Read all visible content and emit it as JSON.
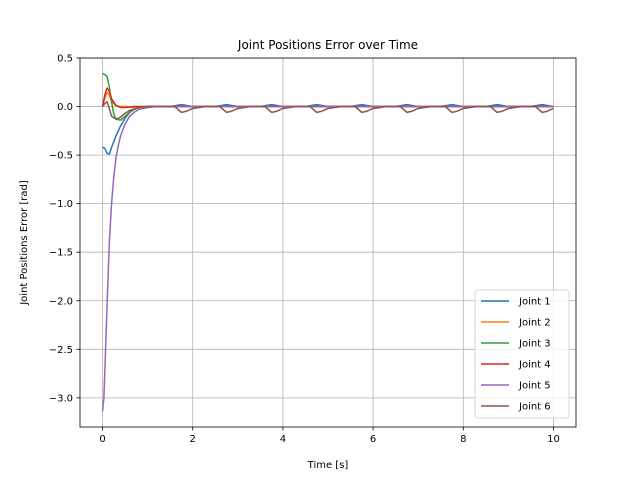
{
  "chart_data": {
    "type": "line",
    "title": "Joint Positions Error over Time",
    "xlabel": "Time [s]",
    "ylabel": "Joint Positions Error [rad]",
    "xlim": [
      -0.5,
      10.5
    ],
    "ylim": [
      -3.3,
      0.5
    ],
    "xticks": [
      0,
      2,
      4,
      6,
      8,
      10
    ],
    "xtick_labels": [
      "0",
      "2",
      "4",
      "6",
      "8",
      "10"
    ],
    "yticks": [
      0.5,
      0.0,
      -0.5,
      -1.0,
      -1.5,
      -2.0,
      -2.5,
      -3.0
    ],
    "ytick_labels": [
      "0.5",
      "0.0",
      "−0.5",
      "−1.0",
      "−1.5",
      "−2.0",
      "−2.5",
      "−3.0"
    ],
    "grid": true,
    "legend_position": "lower-right",
    "series": [
      {
        "name": "Joint 1",
        "color": "#1f77b4",
        "x": [
          0,
          0.05,
          0.1,
          0.15,
          0.2,
          0.3,
          0.4,
          0.5,
          0.6,
          0.7,
          0.8,
          1.0,
          1.5,
          1.75,
          2.0,
          2.5,
          2.75,
          3.0,
          3.5,
          3.75,
          4.0,
          4.5,
          4.75,
          5.0,
          5.5,
          5.75,
          6.0,
          6.5,
          6.75,
          7.0,
          7.5,
          7.75,
          8.0,
          8.5,
          8.75,
          9.0,
          9.5,
          9.75,
          10.0
        ],
        "y": [
          -0.42,
          -0.43,
          -0.48,
          -0.49,
          -0.42,
          -0.3,
          -0.2,
          -0.12,
          -0.06,
          -0.03,
          -0.01,
          0.0,
          0.0,
          0.02,
          0.0,
          0.0,
          0.02,
          0.0,
          0.0,
          0.02,
          0.0,
          0.0,
          0.02,
          0.0,
          0.0,
          0.02,
          0.0,
          0.0,
          0.02,
          0.0,
          0.0,
          0.02,
          0.0,
          0.0,
          0.02,
          0.0,
          0.0,
          0.02,
          0.0
        ]
      },
      {
        "name": "Joint 2",
        "color": "#ff7f0e",
        "x": [
          0,
          0.05,
          0.1,
          0.15,
          0.2,
          0.3,
          0.4,
          0.5,
          0.7,
          1.0,
          10.0
        ],
        "y": [
          0.0,
          0.08,
          0.15,
          0.12,
          0.05,
          0.01,
          0.0,
          0.0,
          -0.01,
          0.0,
          0.0
        ]
      },
      {
        "name": "Joint 3",
        "color": "#2ca02c",
        "x": [
          0,
          0.05,
          0.1,
          0.15,
          0.2,
          0.25,
          0.3,
          0.4,
          0.5,
          0.6,
          0.7,
          0.8,
          1.0,
          2.0,
          4.0,
          6.0,
          8.0,
          10.0
        ],
        "y": [
          0.34,
          0.33,
          0.31,
          0.2,
          0.05,
          -0.08,
          -0.13,
          -0.14,
          -0.1,
          -0.06,
          -0.03,
          -0.01,
          0.0,
          0.0,
          0.0,
          0.0,
          0.0,
          0.0
        ]
      },
      {
        "name": "Joint 4",
        "color": "#d62728",
        "x": [
          0,
          0.05,
          0.1,
          0.15,
          0.2,
          0.3,
          0.4,
          0.5,
          0.7,
          1.0,
          10.0
        ],
        "y": [
          0.0,
          0.12,
          0.19,
          0.16,
          0.08,
          0.01,
          -0.01,
          -0.01,
          0.0,
          0.0,
          0.0
        ]
      },
      {
        "name": "Joint 5",
        "color": "#9467bd",
        "x": [
          0,
          0.03,
          0.06,
          0.1,
          0.15,
          0.2,
          0.25,
          0.3,
          0.35,
          0.4,
          0.5,
          0.6,
          0.7,
          0.8,
          0.9,
          1.0,
          1.2,
          1.5,
          2.0,
          4.0,
          6.0,
          8.0,
          10.0
        ],
        "y": [
          -3.14,
          -3.0,
          -2.6,
          -2.05,
          -1.4,
          -1.0,
          -0.72,
          -0.52,
          -0.4,
          -0.3,
          -0.18,
          -0.1,
          -0.06,
          -0.03,
          -0.02,
          -0.01,
          0.0,
          0.0,
          0.0,
          0.0,
          0.0,
          0.0,
          0.0
        ]
      },
      {
        "name": "Joint 6",
        "color": "#8c564b",
        "x": [
          0,
          0.05,
          0.1,
          0.15,
          0.2,
          0.3,
          0.4,
          0.5,
          0.6,
          0.8,
          1.0,
          1.6,
          1.75,
          1.85,
          2.0,
          2.3,
          2.6,
          2.75,
          2.85,
          3.0,
          3.3,
          3.6,
          3.75,
          3.85,
          4.0,
          4.3,
          4.6,
          4.75,
          4.85,
          5.0,
          5.3,
          5.6,
          5.75,
          5.85,
          6.0,
          6.3,
          6.6,
          6.75,
          6.85,
          7.0,
          7.3,
          7.6,
          7.75,
          7.85,
          8.0,
          8.3,
          8.6,
          8.75,
          8.85,
          9.0,
          9.3,
          9.6,
          9.75,
          9.85,
          10.0
        ],
        "y": [
          0.0,
          0.03,
          0.05,
          -0.02,
          -0.1,
          -0.13,
          -0.11,
          -0.07,
          -0.04,
          -0.01,
          0.0,
          0.0,
          -0.06,
          -0.05,
          -0.02,
          0.0,
          0.0,
          -0.06,
          -0.05,
          -0.02,
          0.0,
          0.0,
          -0.06,
          -0.05,
          -0.02,
          0.0,
          0.0,
          -0.06,
          -0.05,
          -0.02,
          0.0,
          0.0,
          -0.06,
          -0.05,
          -0.02,
          0.0,
          0.0,
          -0.06,
          -0.05,
          -0.02,
          0.0,
          0.0,
          -0.06,
          -0.05,
          -0.02,
          0.0,
          0.0,
          -0.06,
          -0.05,
          -0.02,
          0.0,
          0.0,
          -0.06,
          -0.05,
          -0.02
        ]
      }
    ]
  }
}
